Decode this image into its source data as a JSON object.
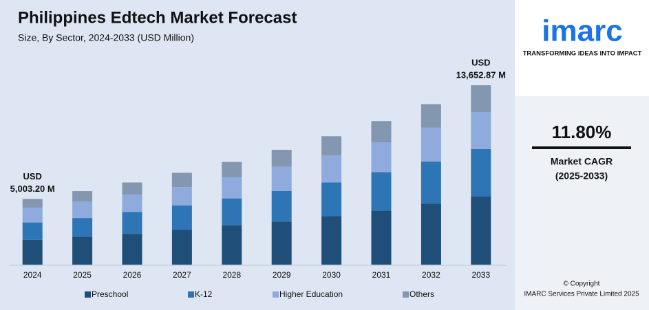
{
  "chart_data": {
    "type": "bar",
    "stacked": true,
    "title": "Philippines Edtech Market Forecast",
    "subtitle": "Size, By Sector, 2024-2033 (USD Million)",
    "categories": [
      "2024",
      "2025",
      "2026",
      "2027",
      "2028",
      "2029",
      "2030",
      "2031",
      "2032",
      "2033"
    ],
    "series": [
      {
        "name": "Preschool",
        "color": "#1f4e79",
        "values": [
          1888,
          2131,
          2334,
          2641,
          2995,
          3277,
          3703,
          4118,
          4649,
          5180
        ]
      },
      {
        "name": "K-12",
        "color": "#2e75b6",
        "values": [
          1322,
          1420,
          1667,
          1864,
          2045,
          2321,
          2554,
          2924,
          3193,
          3609
        ]
      },
      {
        "name": "Higher Education",
        "color": "#8faadc",
        "values": [
          1133,
          1243,
          1334,
          1398,
          1607,
          1843,
          2043,
          2268,
          2577,
          2824
        ]
      },
      {
        "name": "Others",
        "color": "#8497b0",
        "values": [
          660,
          799,
          917,
          1087,
          1169,
          1297,
          1469,
          1611,
          1792,
          2040
        ]
      }
    ],
    "annotations": [
      {
        "lines": [
          "USD",
          "5,003.20 M"
        ]
      },
      {
        "lines": [
          "USD",
          "13,652.87 M"
        ]
      }
    ]
  },
  "branding": {
    "logo": "imarc",
    "tagline": "TRANSFORMING IDEAS INTO IMPACT",
    "cagr": "11.80%",
    "cagr_label": "Market CAGR",
    "cagr_period": "(2025-2033)",
    "copyright": "© Copyright",
    "company": "IMARC Services Private Limited 2025"
  }
}
